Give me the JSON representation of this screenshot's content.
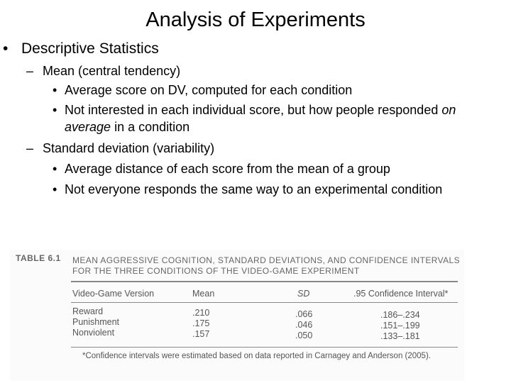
{
  "slide": {
    "title": "Analysis of Experiments",
    "bullet_1": "Descriptive Statistics",
    "dash_1": "Mean (central tendency)",
    "sub_1a": "Average score on DV, computed for each condition",
    "sub_1b_line1_pre": "Not interested in each individual score, but how people responded ",
    "sub_1b_line1_em": "on",
    "sub_1b_line2_em": "average",
    "sub_1b_line2_post": " in a condition",
    "dash_2": "Standard deviation (variability)",
    "sub_2a": "Average distance of each score from the mean of a group",
    "sub_2b": "Not everyone responds the same way to an experimental condition",
    "markers": {
      "bullet": "•",
      "dash": "–",
      "sub_bullet": "•"
    }
  },
  "table": {
    "label": "TABLE 6.1",
    "caption_line1": "MEAN AGGRESSIVE COGNITION, STANDARD DEVIATIONS, AND CONFIDENCE INTERVALS",
    "caption_line2": "FOR THE THREE CONDITIONS OF THE VIDEO-GAME EXPERIMENT",
    "headers": {
      "version": "Video-Game Version",
      "mean": "Mean",
      "sd": "SD",
      "ci": ".95 Confidence Interval*"
    },
    "rows": [
      {
        "version": "Reward",
        "mean": ".210",
        "sd": ".066",
        "ci": ".186–.234"
      },
      {
        "version": "Punishment",
        "mean": ".175",
        "sd": ".046",
        "ci": ".151–.199"
      },
      {
        "version": "Nonviolent",
        "mean": ".157",
        "sd": ".050",
        "ci": ".133–.181"
      }
    ],
    "footnote": "*Confidence intervals were estimated based on data reported in Carnagey and Anderson (2005)."
  }
}
